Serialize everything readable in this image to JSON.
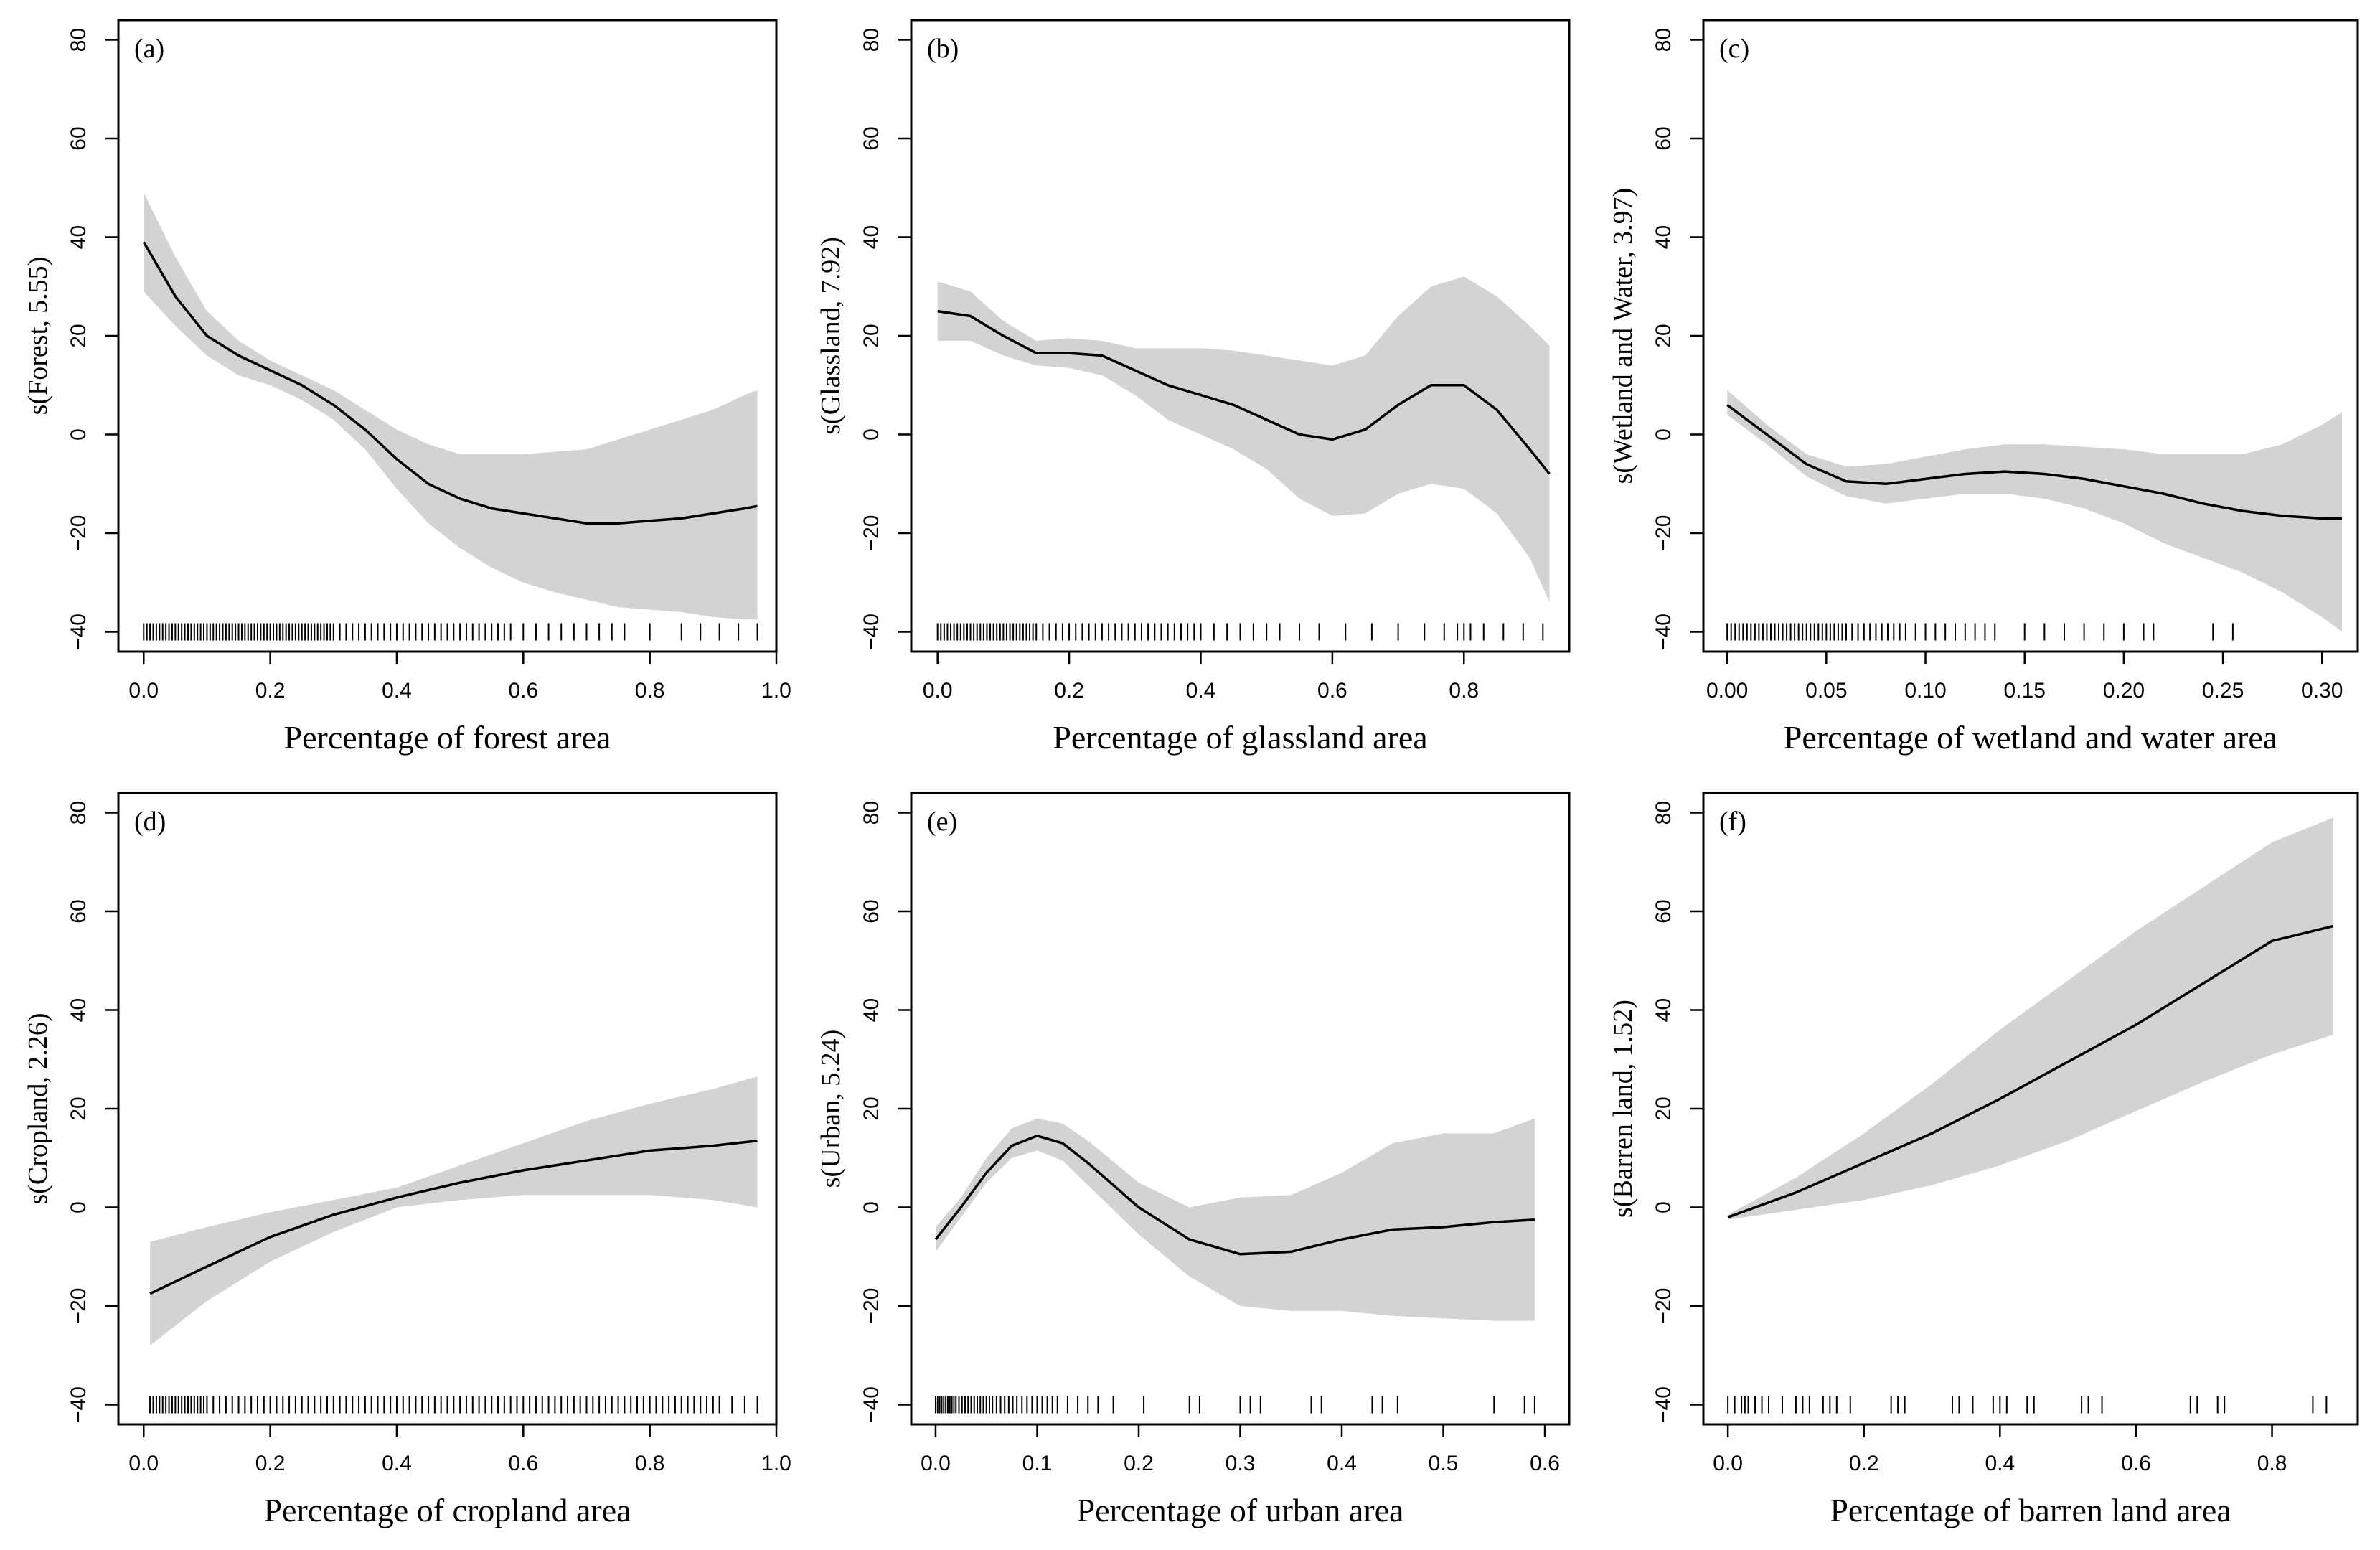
{
  "chart_data": [
    {
      "type": "line",
      "panel_label": "(a)",
      "xlabel": "Percentage of forest area",
      "ylabel": "s(Forest, 5.55)",
      "xlim": [
        -0.04,
        1.0
      ],
      "ylim": [
        -44,
        84
      ],
      "xticks": [
        0.0,
        0.2,
        0.4,
        0.6,
        0.8,
        1.0
      ],
      "xtick_labels": [
        "0.0",
        "0.2",
        "0.4",
        "0.6",
        "0.8",
        "1.0"
      ],
      "yticks": [
        -40,
        -20,
        0,
        20,
        40,
        60,
        80
      ],
      "ytick_labels": [
        "−40",
        "−20",
        "0",
        "20",
        "40",
        "60",
        "80"
      ],
      "x": [
        0.0,
        0.05,
        0.1,
        0.15,
        0.2,
        0.25,
        0.3,
        0.35,
        0.4,
        0.45,
        0.5,
        0.55,
        0.6,
        0.65,
        0.7,
        0.75,
        0.8,
        0.85,
        0.9,
        0.95,
        0.97
      ],
      "fit": [
        39,
        28,
        20,
        16,
        13,
        10,
        6,
        1,
        -5,
        -10,
        -13,
        -15,
        -16,
        -17,
        -18,
        -18,
        -17.5,
        -17,
        -16,
        -15,
        -14.5
      ],
      "lower": [
        29,
        22,
        16,
        12,
        10,
        7,
        3,
        -3,
        -11,
        -18,
        -23,
        -27,
        -30,
        -32,
        -33.5,
        -35,
        -35.5,
        -36,
        -37,
        -37.5,
        -37.5
      ],
      "upper": [
        49,
        36,
        25,
        19,
        15,
        12,
        9,
        5,
        1,
        -2,
        -4,
        -4,
        -4,
        -3.5,
        -3,
        -1,
        1,
        3,
        5,
        8,
        9
      ],
      "rug": [
        0.0,
        0.005,
        0.01,
        0.015,
        0.02,
        0.025,
        0.03,
        0.035,
        0.04,
        0.045,
        0.05,
        0.055,
        0.06,
        0.065,
        0.07,
        0.075,
        0.08,
        0.085,
        0.09,
        0.095,
        0.1,
        0.105,
        0.11,
        0.115,
        0.12,
        0.125,
        0.13,
        0.135,
        0.14,
        0.145,
        0.15,
        0.155,
        0.16,
        0.165,
        0.17,
        0.175,
        0.18,
        0.185,
        0.19,
        0.195,
        0.2,
        0.205,
        0.21,
        0.215,
        0.22,
        0.225,
        0.23,
        0.235,
        0.24,
        0.245,
        0.25,
        0.255,
        0.26,
        0.265,
        0.27,
        0.275,
        0.28,
        0.285,
        0.29,
        0.295,
        0.3,
        0.31,
        0.32,
        0.33,
        0.34,
        0.35,
        0.36,
        0.37,
        0.38,
        0.39,
        0.4,
        0.41,
        0.42,
        0.43,
        0.44,
        0.45,
        0.46,
        0.47,
        0.48,
        0.49,
        0.5,
        0.51,
        0.52,
        0.53,
        0.54,
        0.55,
        0.56,
        0.57,
        0.58,
        0.6,
        0.62,
        0.64,
        0.66,
        0.68,
        0.7,
        0.72,
        0.74,
        0.76,
        0.8,
        0.85,
        0.88,
        0.91,
        0.94,
        0.97
      ]
    },
    {
      "type": "line",
      "panel_label": "(b)",
      "xlabel": "Percentage of glassland area",
      "ylabel": "s(Glassland, 7.92)",
      "xlim": [
        -0.04,
        0.96
      ],
      "ylim": [
        -44,
        84
      ],
      "xticks": [
        0.0,
        0.2,
        0.4,
        0.6,
        0.8
      ],
      "xtick_labels": [
        "0.0",
        "0.2",
        "0.4",
        "0.6",
        "0.8"
      ],
      "yticks": [
        -40,
        -20,
        0,
        20,
        40,
        60,
        80
      ],
      "ytick_labels": [
        "−40",
        "−20",
        "0",
        "20",
        "40",
        "60",
        "80"
      ],
      "x": [
        0.0,
        0.05,
        0.1,
        0.15,
        0.2,
        0.25,
        0.3,
        0.35,
        0.4,
        0.45,
        0.5,
        0.55,
        0.6,
        0.65,
        0.7,
        0.75,
        0.8,
        0.85,
        0.9,
        0.93
      ],
      "fit": [
        25,
        24,
        20,
        16.5,
        16.5,
        16,
        13,
        10,
        8,
        6,
        3,
        0,
        -1,
        1,
        6,
        10,
        10,
        5,
        -3,
        -8
      ],
      "lower": [
        19,
        19,
        16,
        14,
        13.5,
        12,
        8,
        3,
        0,
        -3,
        -7,
        -13,
        -16.5,
        -16,
        -12,
        -10,
        -11,
        -16,
        -25,
        -34
      ],
      "upper": [
        31,
        29,
        23,
        19,
        19.5,
        19,
        17.5,
        17.5,
        17.5,
        17,
        16,
        15,
        14,
        16,
        24,
        30,
        32,
        28,
        22,
        18
      ],
      "rug": [
        0.0,
        0.005,
        0.01,
        0.015,
        0.02,
        0.025,
        0.03,
        0.035,
        0.04,
        0.045,
        0.05,
        0.055,
        0.06,
        0.065,
        0.07,
        0.075,
        0.08,
        0.085,
        0.09,
        0.095,
        0.1,
        0.105,
        0.11,
        0.115,
        0.12,
        0.125,
        0.13,
        0.135,
        0.14,
        0.145,
        0.15,
        0.16,
        0.17,
        0.18,
        0.19,
        0.2,
        0.21,
        0.22,
        0.23,
        0.24,
        0.25,
        0.26,
        0.27,
        0.28,
        0.29,
        0.3,
        0.31,
        0.32,
        0.33,
        0.34,
        0.35,
        0.36,
        0.37,
        0.38,
        0.39,
        0.4,
        0.42,
        0.44,
        0.46,
        0.48,
        0.5,
        0.52,
        0.55,
        0.58,
        0.62,
        0.66,
        0.7,
        0.74,
        0.77,
        0.79,
        0.8,
        0.81,
        0.83,
        0.86,
        0.89,
        0.92
      ]
    },
    {
      "type": "line",
      "panel_label": "(c)",
      "xlabel": "Percentage of wetland and water area",
      "ylabel": "s(Wetland and Water, 3.97)",
      "xlim": [
        -0.012,
        0.318
      ],
      "ylim": [
        -44,
        84
      ],
      "xticks": [
        0.0,
        0.05,
        0.1,
        0.15,
        0.2,
        0.25,
        0.3
      ],
      "xtick_labels": [
        "0.00",
        "0.05",
        "0.10",
        "0.15",
        "0.20",
        "0.25",
        "0.30"
      ],
      "yticks": [
        -40,
        -20,
        0,
        20,
        40,
        60,
        80
      ],
      "ytick_labels": [
        "−40",
        "−20",
        "0",
        "20",
        "40",
        "60",
        "80"
      ],
      "x": [
        0.0,
        0.02,
        0.04,
        0.06,
        0.08,
        0.1,
        0.12,
        0.14,
        0.16,
        0.18,
        0.2,
        0.22,
        0.24,
        0.26,
        0.28,
        0.3,
        0.31
      ],
      "fit": [
        6,
        0,
        -6,
        -9.5,
        -10,
        -9,
        -8,
        -7.5,
        -8,
        -9,
        -10.5,
        -12,
        -14,
        -15.5,
        -16.5,
        -17,
        -17
      ],
      "lower": [
        4,
        -2,
        -8.5,
        -12.5,
        -14,
        -13,
        -12,
        -12,
        -13,
        -15,
        -18,
        -22,
        -25,
        -28,
        -32,
        -37,
        -40
      ],
      "upper": [
        9,
        2,
        -4,
        -6.5,
        -6,
        -4.5,
        -3,
        -2,
        -2,
        -2.5,
        -3,
        -4,
        -4,
        -4,
        -2,
        2,
        4.5
      ],
      "rug": [
        0.0,
        0.002,
        0.004,
        0.006,
        0.008,
        0.01,
        0.012,
        0.014,
        0.016,
        0.018,
        0.02,
        0.022,
        0.024,
        0.026,
        0.028,
        0.03,
        0.032,
        0.034,
        0.036,
        0.038,
        0.04,
        0.042,
        0.044,
        0.046,
        0.048,
        0.05,
        0.052,
        0.054,
        0.056,
        0.058,
        0.06,
        0.063,
        0.066,
        0.069,
        0.072,
        0.075,
        0.078,
        0.081,
        0.084,
        0.087,
        0.09,
        0.095,
        0.1,
        0.105,
        0.11,
        0.115,
        0.12,
        0.125,
        0.13,
        0.135,
        0.15,
        0.16,
        0.17,
        0.18,
        0.19,
        0.2,
        0.21,
        0.215,
        0.245,
        0.255
      ]
    },
    {
      "type": "line",
      "panel_label": "(d)",
      "xlabel": "Percentage of cropland area",
      "ylabel": "s(Cropland, 2.26)",
      "xlim": [
        -0.04,
        1.0
      ],
      "ylim": [
        -44,
        84
      ],
      "xticks": [
        0.0,
        0.2,
        0.4,
        0.6,
        0.8,
        1.0
      ],
      "xtick_labels": [
        "0.0",
        "0.2",
        "0.4",
        "0.6",
        "0.8",
        "1.0"
      ],
      "yticks": [
        -40,
        -20,
        0,
        20,
        40,
        60,
        80
      ],
      "ytick_labels": [
        "−40",
        "−20",
        "0",
        "20",
        "40",
        "60",
        "80"
      ],
      "x": [
        0.01,
        0.1,
        0.2,
        0.3,
        0.4,
        0.5,
        0.6,
        0.7,
        0.8,
        0.9,
        0.97
      ],
      "fit": [
        -17.5,
        -12,
        -6,
        -1.5,
        2,
        5,
        7.5,
        9.5,
        11.5,
        12.5,
        13.5
      ],
      "lower": [
        -28,
        -19,
        -11,
        -5,
        0,
        1.5,
        2.5,
        2.5,
        2.5,
        1.5,
        0
      ],
      "upper": [
        -7,
        -4,
        -1,
        1.5,
        4,
        8.5,
        13,
        17.5,
        21,
        24,
        26.5
      ],
      "rug": [
        0.01,
        0.015,
        0.02,
        0.025,
        0.03,
        0.035,
        0.04,
        0.045,
        0.05,
        0.055,
        0.06,
        0.065,
        0.07,
        0.075,
        0.08,
        0.085,
        0.09,
        0.095,
        0.1,
        0.11,
        0.12,
        0.13,
        0.14,
        0.15,
        0.16,
        0.17,
        0.18,
        0.19,
        0.2,
        0.21,
        0.22,
        0.23,
        0.24,
        0.25,
        0.26,
        0.27,
        0.28,
        0.29,
        0.3,
        0.31,
        0.32,
        0.33,
        0.34,
        0.35,
        0.36,
        0.37,
        0.38,
        0.39,
        0.4,
        0.41,
        0.42,
        0.43,
        0.44,
        0.45,
        0.46,
        0.47,
        0.48,
        0.49,
        0.5,
        0.51,
        0.52,
        0.53,
        0.54,
        0.55,
        0.56,
        0.57,
        0.58,
        0.59,
        0.6,
        0.61,
        0.62,
        0.63,
        0.64,
        0.65,
        0.66,
        0.67,
        0.68,
        0.69,
        0.7,
        0.71,
        0.72,
        0.73,
        0.74,
        0.75,
        0.76,
        0.77,
        0.78,
        0.79,
        0.8,
        0.81,
        0.82,
        0.83,
        0.84,
        0.85,
        0.86,
        0.87,
        0.88,
        0.89,
        0.9,
        0.91,
        0.93,
        0.95,
        0.97
      ]
    },
    {
      "type": "line",
      "panel_label": "(e)",
      "xlabel": "Percentage of urban area",
      "ylabel": "s(Urban, 5.24)",
      "xlim": [
        -0.024,
        0.624
      ],
      "ylim": [
        -44,
        84
      ],
      "xticks": [
        0.0,
        0.1,
        0.2,
        0.3,
        0.4,
        0.5,
        0.6
      ],
      "xtick_labels": [
        "0.0",
        "0.1",
        "0.2",
        "0.3",
        "0.4",
        "0.5",
        "0.6"
      ],
      "yticks": [
        -40,
        -20,
        0,
        20,
        40,
        60,
        80
      ],
      "ytick_labels": [
        "−40",
        "−20",
        "0",
        "20",
        "40",
        "60",
        "80"
      ],
      "x": [
        0.0,
        0.025,
        0.05,
        0.075,
        0.1,
        0.125,
        0.15,
        0.2,
        0.25,
        0.3,
        0.35,
        0.4,
        0.45,
        0.5,
        0.55,
        0.59
      ],
      "fit": [
        -6.5,
        0,
        7,
        12.5,
        14.5,
        13,
        9,
        0,
        -6.5,
        -9.5,
        -9,
        -6.5,
        -4.5,
        -4,
        -3,
        -2.5
      ],
      "lower": [
        -9,
        -2,
        5,
        10,
        11.5,
        9.5,
        4.5,
        -5.5,
        -14,
        -20,
        -21,
        -21,
        -22,
        -22.5,
        -23,
        -23
      ],
      "upper": [
        -4,
        2,
        10,
        16,
        18,
        17,
        13.5,
        5,
        0,
        2,
        2.5,
        7,
        13,
        15,
        15,
        18
      ],
      "rug": [
        0.0,
        0.002,
        0.004,
        0.006,
        0.008,
        0.01,
        0.012,
        0.014,
        0.016,
        0.018,
        0.02,
        0.023,
        0.026,
        0.029,
        0.032,
        0.035,
        0.038,
        0.041,
        0.044,
        0.047,
        0.05,
        0.053,
        0.056,
        0.06,
        0.064,
        0.068,
        0.072,
        0.076,
        0.08,
        0.085,
        0.09,
        0.095,
        0.1,
        0.105,
        0.11,
        0.115,
        0.12,
        0.13,
        0.14,
        0.15,
        0.16,
        0.175,
        0.205,
        0.25,
        0.26,
        0.3,
        0.31,
        0.32,
        0.37,
        0.38,
        0.43,
        0.44,
        0.455,
        0.55,
        0.58,
        0.59
      ]
    },
    {
      "type": "line",
      "panel_label": "(f)",
      "xlabel": "Percentage of barren land area",
      "ylabel": "s(Barren land, 1.52)",
      "xlim": [
        -0.036,
        0.926
      ],
      "ylim": [
        -44,
        84
      ],
      "xticks": [
        0.0,
        0.2,
        0.4,
        0.6,
        0.8
      ],
      "xtick_labels": [
        "0.0",
        "0.2",
        "0.4",
        "0.6",
        "0.8"
      ],
      "yticks": [
        -40,
        -20,
        0,
        20,
        40,
        60,
        80
      ],
      "ytick_labels": [
        "−40",
        "−20",
        "0",
        "20",
        "40",
        "60",
        "80"
      ],
      "x": [
        0.0,
        0.1,
        0.2,
        0.3,
        0.4,
        0.5,
        0.6,
        0.7,
        0.8,
        0.89
      ],
      "fit": [
        -2,
        3,
        9,
        15,
        22,
        29.5,
        37,
        45.5,
        54,
        57
      ],
      "lower": [
        -2.5,
        -0.5,
        1.5,
        4.5,
        8.5,
        13.5,
        19.5,
        25.5,
        31,
        35
      ],
      "upper": [
        -1.5,
        6,
        15,
        25,
        36,
        46,
        56,
        65,
        74,
        79
      ],
      "rug": [
        0.0,
        0.01,
        0.02,
        0.025,
        0.03,
        0.04,
        0.05,
        0.06,
        0.08,
        0.1,
        0.11,
        0.12,
        0.14,
        0.15,
        0.16,
        0.18,
        0.24,
        0.25,
        0.26,
        0.33,
        0.34,
        0.36,
        0.39,
        0.4,
        0.41,
        0.44,
        0.45,
        0.52,
        0.53,
        0.55,
        0.68,
        0.69,
        0.72,
        0.73,
        0.86,
        0.88
      ]
    }
  ]
}
